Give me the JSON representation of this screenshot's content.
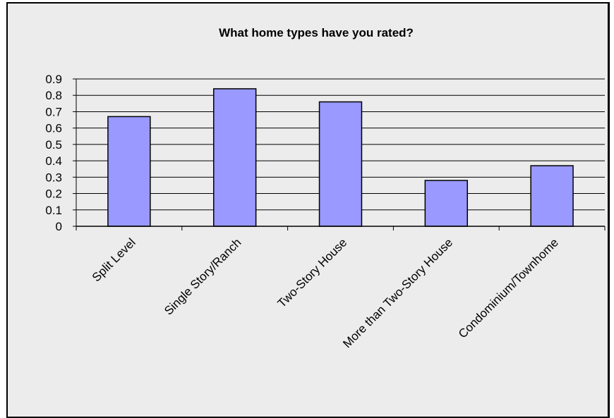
{
  "chart_data": {
    "type": "bar",
    "title": "What home types have you rated?",
    "xlabel": "",
    "ylabel": "",
    "categories": [
      "Split Level",
      "Single Story/Ranch",
      "Two-Story House",
      "More than Two-Story House",
      "Condominium/Townhome"
    ],
    "values": [
      0.67,
      0.84,
      0.76,
      0.28,
      0.37
    ],
    "ylim": [
      0,
      0.9
    ],
    "yticks": [
      "0",
      "0.1",
      "0.2",
      "0.3",
      "0.4",
      "0.5",
      "0.6",
      "0.7",
      "0.8",
      "0.9"
    ],
    "grid": true,
    "legend": "none",
    "bar_color": "#9999ff",
    "bar_edge_color": "#000000",
    "background_color": "#ececec"
  }
}
